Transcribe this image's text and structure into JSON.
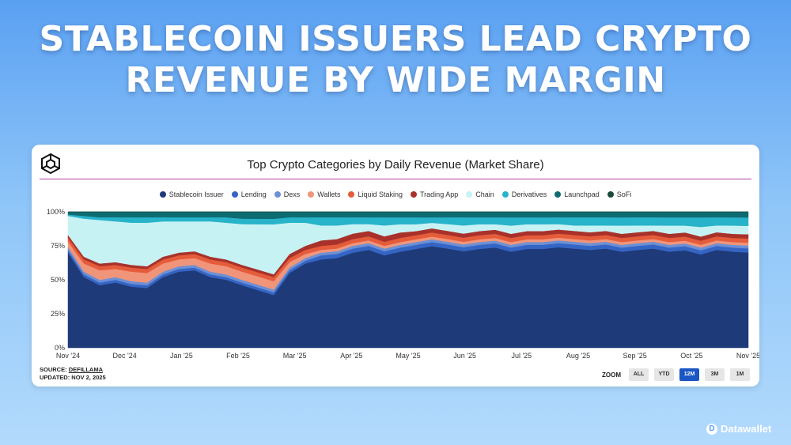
{
  "headline": {
    "line1": "STABLECOIN ISSUERS LEAD CRYPTO",
    "line2": "REVENUE BY WIDE MARGIN"
  },
  "chart_data": {
    "type": "area",
    "stacked": true,
    "normalized": true,
    "title": "Top Crypto Categories by Daily Revenue (Market Share)",
    "x_ticks": [
      "Nov '24",
      "Dec '24",
      "Jan '25",
      "Feb '25",
      "Mar '25",
      "Apr '25",
      "May '25",
      "Jun '25",
      "Jul '25",
      "Aug '25",
      "Sep '25",
      "Oct '25",
      "Nov '25"
    ],
    "y_ticks": [
      "0%",
      "25%",
      "50%",
      "75%",
      "100%"
    ],
    "ylim": [
      0,
      100
    ],
    "legend_position": "top",
    "series": [
      {
        "name": "Stablecoin Issuer",
        "color": "#1e3a78",
        "values": [
          70,
          52,
          46,
          48,
          45,
          44,
          52,
          56,
          57,
          52,
          50,
          46,
          42,
          38,
          55,
          62,
          65,
          66,
          70,
          72,
          68,
          70,
          72,
          74,
          73,
          71,
          72,
          73,
          70,
          72,
          72,
          74,
          73,
          72,
          73,
          70,
          72,
          73,
          70,
          71,
          68,
          72,
          70,
          68
        ]
      },
      {
        "name": "Lending",
        "color": "#3565c4",
        "values": [
          2,
          2,
          2,
          2,
          2,
          2,
          2,
          2,
          2,
          2,
          2,
          2,
          2,
          2,
          2,
          2,
          3,
          3,
          3,
          3,
          3,
          3,
          3,
          3,
          3,
          3,
          3,
          3,
          3,
          3,
          3,
          3,
          3,
          3,
          3,
          3,
          3,
          3,
          3,
          3,
          3,
          3,
          3,
          3
        ]
      },
      {
        "name": "Dexs",
        "color": "#6d8fd4",
        "values": [
          2,
          2,
          2,
          2,
          2,
          2,
          2,
          2,
          2,
          2,
          2,
          2,
          2,
          2,
          2,
          2,
          2,
          2,
          2,
          2,
          2,
          2,
          2,
          2,
          2,
          2,
          2,
          2,
          2,
          2,
          2,
          2,
          2,
          2,
          2,
          2,
          2,
          2,
          2,
          2,
          2,
          2,
          2,
          2
        ]
      },
      {
        "name": "Wallets",
        "color": "#f1957a",
        "values": [
          4,
          6,
          7,
          6,
          7,
          7,
          6,
          5,
          5,
          6,
          6,
          6,
          6,
          6,
          4,
          3,
          2,
          2,
          2,
          2,
          2,
          2,
          2,
          2,
          2,
          2,
          2,
          2,
          2,
          2,
          2,
          2,
          2,
          2,
          2,
          2,
          2,
          2,
          2,
          2,
          2,
          2,
          2,
          2
        ]
      },
      {
        "name": "Liquid Staking",
        "color": "#e55c3b",
        "values": [
          3,
          3,
          3,
          3,
          3,
          3,
          3,
          3,
          3,
          3,
          3,
          3,
          3,
          3,
          3,
          3,
          3,
          3,
          3,
          3,
          3,
          3,
          3,
          3,
          3,
          3,
          3,
          3,
          3,
          3,
          3,
          3,
          3,
          3,
          3,
          3,
          3,
          3,
          3,
          3,
          3,
          3,
          3,
          3
        ]
      },
      {
        "name": "Trading App",
        "color": "#a8322a",
        "values": [
          2,
          2,
          2,
          2,
          2,
          2,
          2,
          2,
          2,
          2,
          2,
          2,
          2,
          2,
          3,
          3,
          4,
          4,
          4,
          4,
          4,
          4,
          3,
          3,
          3,
          3,
          3,
          3,
          3,
          3,
          3,
          3,
          3,
          3,
          3,
          3,
          3,
          3,
          3,
          3,
          3,
          3,
          3,
          3
        ]
      },
      {
        "name": "Chain",
        "color": "#c7f2f4",
        "values": [
          14,
          28,
          32,
          30,
          31,
          32,
          26,
          23,
          22,
          26,
          27,
          30,
          33,
          36,
          23,
          17,
          11,
          10,
          7,
          5,
          8,
          6,
          5,
          4,
          5,
          6,
          5,
          4,
          6,
          5,
          5,
          4,
          4,
          5,
          4,
          6,
          5,
          4,
          6,
          5,
          7,
          5,
          6,
          6
        ]
      },
      {
        "name": "Derivatives",
        "color": "#27b3c9",
        "values": [
          1,
          2,
          2,
          3,
          4,
          4,
          3,
          3,
          3,
          3,
          4,
          4,
          4,
          4,
          4,
          4,
          6,
          6,
          5,
          5,
          6,
          5,
          5,
          4,
          5,
          6,
          5,
          5,
          6,
          5,
          5,
          5,
          6,
          6,
          6,
          6,
          6,
          6,
          6,
          6,
          7,
          6,
          6,
          6
        ]
      },
      {
        "name": "Launchpad",
        "color": "#0e6b72",
        "values": [
          2,
          3,
          4,
          4,
          4,
          4,
          4,
          4,
          4,
          4,
          4,
          5,
          5,
          5,
          4,
          4,
          4,
          4,
          4,
          4,
          4,
          4,
          4,
          4,
          4,
          4,
          4,
          4,
          4,
          4,
          4,
          4,
          4,
          4,
          4,
          4,
          4,
          4,
          4,
          4,
          4,
          4,
          4,
          4
        ]
      },
      {
        "name": "SoFi",
        "color": "#1c4a3a",
        "values": [
          0,
          0,
          0,
          0,
          0,
          0,
          0,
          0,
          0,
          0,
          0,
          0,
          0,
          0,
          0,
          0,
          0,
          0,
          0,
          0,
          0,
          0,
          0,
          0,
          0,
          0,
          0,
          0,
          0,
          0,
          0,
          0,
          0,
          0,
          0,
          0,
          0,
          0,
          0,
          0,
          0,
          0,
          0,
          0
        ]
      }
    ]
  },
  "source": {
    "label": "SOURCE:",
    "name": "DEFILLAMA",
    "updated": "UPDATED: NOV 2, 2025"
  },
  "zoom": {
    "label": "ZOOM",
    "buttons": [
      "ALL",
      "YTD",
      "12M",
      "3M",
      "1M"
    ],
    "active": "12M"
  },
  "brand": {
    "icon": "datawallet-logo-icon",
    "name": "Datawallet"
  }
}
